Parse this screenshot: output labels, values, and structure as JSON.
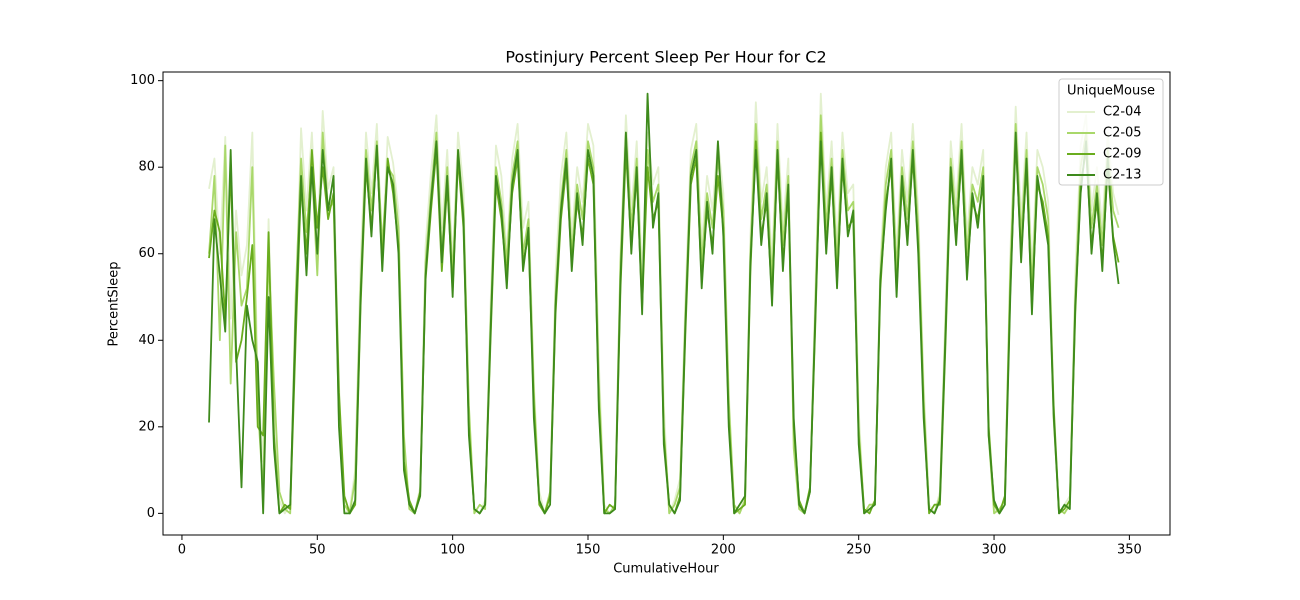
{
  "chart_data": {
    "type": "line",
    "title": "Postinjury Percent Sleep Per Hour for C2",
    "x_label": "CumulativeHour",
    "y_label": "PercentSleep",
    "legend_title": "UniqueMouse",
    "legend_position": "upper right",
    "xlim": [
      -7,
      365
    ],
    "ylim": [
      -5,
      102
    ],
    "xticks": [
      0,
      50,
      100,
      150,
      200,
      250,
      300,
      350
    ],
    "yticks": [
      0,
      20,
      40,
      60,
      80,
      100
    ],
    "grid": false,
    "x": [
      10,
      12,
      14,
      16,
      18,
      20,
      22,
      24,
      26,
      28,
      30,
      32,
      34,
      36,
      38,
      40,
      42,
      44,
      46,
      48,
      50,
      52,
      54,
      56,
      58,
      60,
      62,
      64,
      66,
      68,
      70,
      72,
      74,
      76,
      78,
      80,
      82,
      84,
      86,
      88,
      90,
      92,
      94,
      96,
      98,
      100,
      102,
      104,
      106,
      108,
      110,
      112,
      114,
      116,
      118,
      120,
      122,
      124,
      126,
      128,
      130,
      132,
      134,
      136,
      138,
      140,
      142,
      144,
      146,
      148,
      150,
      152,
      154,
      156,
      158,
      160,
      162,
      164,
      166,
      168,
      170,
      172,
      174,
      176,
      178,
      180,
      182,
      184,
      186,
      188,
      190,
      192,
      194,
      196,
      198,
      200,
      202,
      204,
      206,
      208,
      210,
      212,
      214,
      216,
      218,
      220,
      222,
      224,
      226,
      228,
      230,
      232,
      234,
      236,
      238,
      240,
      242,
      244,
      246,
      248,
      250,
      252,
      254,
      256,
      258,
      260,
      262,
      264,
      266,
      268,
      270,
      272,
      274,
      276,
      278,
      280,
      282,
      284,
      286,
      288,
      290,
      292,
      294,
      296,
      298,
      300,
      302,
      304,
      306,
      308,
      310,
      312,
      314,
      316,
      318,
      320,
      322,
      324,
      326,
      328,
      330,
      332,
      334,
      336,
      338,
      340,
      342,
      344,
      346
    ],
    "series": [
      {
        "name": "C2-04",
        "color": "#e3f0cf",
        "values": [
          75,
          82,
          60,
          87,
          45,
          70,
          55,
          62,
          88,
          30,
          12,
          68,
          25,
          3,
          0,
          2,
          45,
          89,
          70,
          88,
          62,
          93,
          75,
          80,
          30,
          0,
          1,
          10,
          58,
          88,
          74,
          90,
          60,
          87,
          81,
          70,
          15,
          2,
          0,
          6,
          62,
          79,
          92,
          66,
          84,
          58,
          88,
          75,
          20,
          1,
          0,
          3,
          48,
          85,
          78,
          60,
          82,
          90,
          66,
          72,
          30,
          5,
          0,
          2,
          55,
          78,
          88,
          64,
          80,
          72,
          90,
          85,
          35,
          2,
          0,
          1,
          60,
          92,
          70,
          86,
          55,
          88,
          76,
          80,
          25,
          0,
          3,
          8,
          50,
          84,
          90,
          62,
          78,
          70,
          86,
          74,
          28,
          1,
          0,
          4,
          64,
          95,
          72,
          80,
          58,
          90,
          66,
          82,
          18,
          2,
          0,
          6,
          52,
          97,
          70,
          86,
          62,
          88,
          74,
          76,
          24,
          0,
          1,
          3,
          58,
          80,
          88,
          60,
          84,
          72,
          90,
          70,
          30,
          2,
          0,
          5,
          46,
          86,
          72,
          90,
          64,
          80,
          76,
          84,
          22,
          1,
          0,
          2,
          60,
          94,
          68,
          88,
          56,
          84,
          80,
          72,
          26,
          0,
          2,
          4,
          55,
          85,
          92,
          70,
          80,
          66,
          88,
          74,
          69
        ]
      },
      {
        "name": "C2-05",
        "color": "#a9d86a",
        "values": [
          60,
          78,
          40,
          85,
          30,
          65,
          48,
          52,
          80,
          25,
          5,
          60,
          30,
          5,
          1,
          0,
          50,
          82,
          65,
          80,
          55,
          88,
          70,
          72,
          22,
          2,
          0,
          8,
          52,
          84,
          70,
          86,
          62,
          80,
          78,
          66,
          18,
          1,
          0,
          4,
          58,
          74,
          88,
          60,
          80,
          55,
          84,
          70,
          25,
          0,
          2,
          1,
          44,
          80,
          72,
          58,
          78,
          86,
          60,
          68,
          28,
          3,
          0,
          5,
          50,
          72,
          84,
          60,
          76,
          68,
          86,
          80,
          30,
          1,
          0,
          2,
          58,
          88,
          66,
          82,
          50,
          84,
          72,
          76,
          20,
          0,
          2,
          6,
          46,
          80,
          86,
          58,
          74,
          66,
          82,
          70,
          26,
          2,
          0,
          3,
          60,
          90,
          68,
          76,
          54,
          86,
          62,
          78,
          15,
          1,
          0,
          5,
          48,
          92,
          66,
          82,
          58,
          84,
          70,
          72,
          20,
          0,
          2,
          2,
          55,
          76,
          84,
          56,
          80,
          68,
          86,
          66,
          26,
          1,
          0,
          4,
          42,
          82,
          68,
          86,
          60,
          76,
          72,
          80,
          18,
          0,
          1,
          3,
          56,
          90,
          64,
          84,
          52,
          80,
          76,
          68,
          22,
          1,
          0,
          2,
          50,
          80,
          88,
          66,
          76,
          62,
          84,
          70,
          66
        ]
      },
      {
        "name": "C2-09",
        "color": "#6aad1e",
        "values": [
          59,
          70,
          65,
          45,
          80,
          35,
          40,
          50,
          62,
          20,
          18,
          65,
          18,
          0,
          2,
          1,
          40,
          76,
          60,
          84,
          66,
          80,
          68,
          74,
          28,
          4,
          0,
          2,
          48,
          80,
          66,
          84,
          58,
          82,
          74,
          62,
          12,
          3,
          0,
          5,
          54,
          70,
          84,
          56,
          76,
          52,
          82,
          66,
          20,
          1,
          0,
          2,
          40,
          76,
          68,
          55,
          74,
          82,
          58,
          64,
          25,
          2,
          0,
          4,
          46,
          68,
          80,
          58,
          72,
          64,
          82,
          76,
          26,
          0,
          2,
          1,
          52,
          84,
          62,
          78,
          48,
          80,
          68,
          72,
          18,
          2,
          0,
          4,
          42,
          76,
          82,
          54,
          70,
          62,
          78,
          66,
          22,
          0,
          1,
          2,
          56,
          86,
          64,
          72,
          50,
          82,
          58,
          74,
          20,
          3,
          0,
          6,
          44,
          88,
          62,
          78,
          54,
          80,
          66,
          68,
          18,
          1,
          0,
          3,
          52,
          72,
          80,
          52,
          76,
          64,
          82,
          62,
          24,
          0,
          2,
          2,
          38,
          78,
          64,
          82,
          56,
          72,
          68,
          76,
          20,
          2,
          0,
          4,
          52,
          86,
          60,
          80,
          48,
          76,
          72,
          64,
          25,
          0,
          1,
          3,
          46,
          76,
          84,
          62,
          72,
          58,
          80,
          64,
          58
        ]
      },
      {
        "name": "C2-13",
        "color": "#3e8a1c",
        "values": [
          21,
          68,
          55,
          42,
          84,
          38,
          6,
          48,
          40,
          35,
          0,
          50,
          15,
          0,
          1,
          2,
          45,
          78,
          55,
          80,
          60,
          84,
          70,
          78,
          20,
          0,
          0,
          3,
          50,
          82,
          64,
          85,
          56,
          80,
          76,
          60,
          10,
          2,
          0,
          4,
          55,
          72,
          86,
          58,
          78,
          50,
          84,
          68,
          18,
          1,
          0,
          2,
          42,
          78,
          70,
          52,
          76,
          84,
          56,
          66,
          22,
          3,
          0,
          2,
          48,
          70,
          82,
          56,
          74,
          62,
          84,
          78,
          24,
          0,
          0,
          1,
          54,
          88,
          60,
          80,
          46,
          97,
          66,
          74,
          16,
          2,
          0,
          3,
          44,
          78,
          84,
          52,
          72,
          60,
          86,
          64,
          20,
          0,
          2,
          4,
          58,
          84,
          62,
          74,
          48,
          84,
          56,
          76,
          22,
          2,
          0,
          5,
          46,
          86,
          60,
          80,
          52,
          82,
          64,
          70,
          16,
          0,
          1,
          2,
          54,
          70,
          82,
          50,
          78,
          62,
          84,
          60,
          22,
          1,
          0,
          3,
          40,
          80,
          62,
          84,
          54,
          74,
          66,
          78,
          18,
          3,
          0,
          2,
          50,
          88,
          58,
          82,
          46,
          78,
          70,
          62,
          23,
          0,
          2,
          1,
          48,
          74,
          86,
          60,
          74,
          56,
          82,
          63,
          53
        ]
      }
    ]
  }
}
